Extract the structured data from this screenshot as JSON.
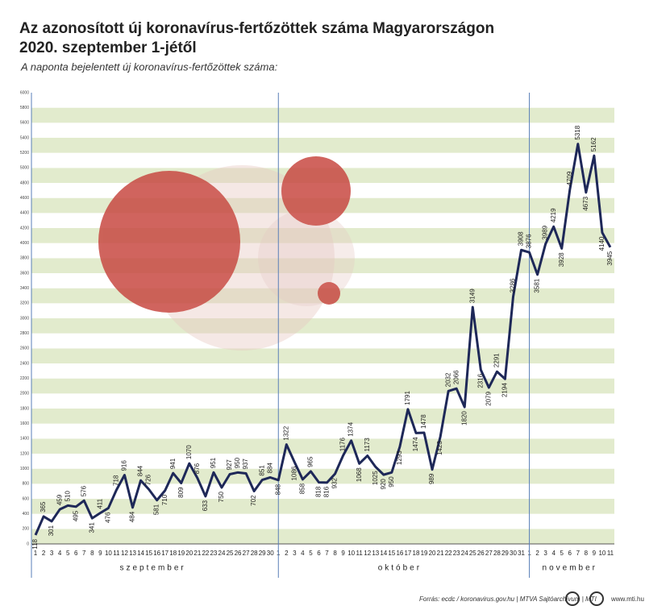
{
  "chart_data": {
    "type": "line",
    "title": [
      "Az azonosított új koronavírus-fertőzöttek száma Magyarországon",
      "2020. szeptember 1-jétől"
    ],
    "subtitle": "A naponta bejelentett új koronavírus-fertőzöttek száma:",
    "categories": [
      "1",
      "2",
      "3",
      "4",
      "5",
      "6",
      "7",
      "8",
      "9",
      "10",
      "11",
      "12",
      "13",
      "14",
      "15",
      "16",
      "17",
      "18",
      "19",
      "20",
      "21",
      "22",
      "23",
      "24",
      "25",
      "26",
      "27",
      "28",
      "29",
      "30",
      "1",
      "2",
      "3",
      "4",
      "5",
      "6",
      "7",
      "8",
      "9",
      "10",
      "11",
      "12",
      "13",
      "14",
      "15",
      "16",
      "17",
      "18",
      "19",
      "20",
      "21",
      "22",
      "23",
      "24",
      "25",
      "26",
      "27",
      "28",
      "29",
      "30",
      "31",
      "1",
      "2",
      "3",
      "4",
      "5",
      "6",
      "7",
      "8",
      "9",
      "10",
      "11"
    ],
    "months": [
      "szeptember",
      "október",
      "november"
    ],
    "values": [
      118,
      365,
      301,
      459,
      510,
      495,
      576,
      341,
      411,
      476,
      718,
      916,
      484,
      844,
      726,
      581,
      710,
      941,
      809,
      1070,
      876,
      633,
      951,
      750,
      927,
      950,
      937,
      702,
      851,
      884,
      848,
      1322,
      1086,
      858,
      965,
      818,
      816,
      932,
      1176,
      1374,
      1068,
      1173,
      1025,
      920,
      950,
      1293,
      1791,
      1474,
      1478,
      989,
      1423,
      2032,
      2066,
      1820,
      3149,
      2316,
      2079,
      2291,
      2194,
      3286,
      3908,
      3876,
      3581,
      3989,
      4219,
      3928,
      4709,
      5318,
      4673,
      5162,
      4140,
      3945
    ],
    "color": "#1e2858",
    "ylim": [
      0,
      6000
    ],
    "yticks": [
      0,
      200,
      400,
      600,
      800,
      1000,
      1200,
      1400,
      1600,
      1800,
      2000,
      2200,
      2400,
      2600,
      2800,
      3000,
      3200,
      3400,
      3600,
      3800,
      4000,
      4200,
      4400,
      4600,
      4800,
      5000,
      5200,
      5400,
      5600,
      5800,
      6000
    ],
    "grid": true,
    "source": "Forrás: ecdc / koronavirus.gov.hu | MTVA Sajtóarchívum | MTI",
    "website": "www.mti.hu"
  }
}
